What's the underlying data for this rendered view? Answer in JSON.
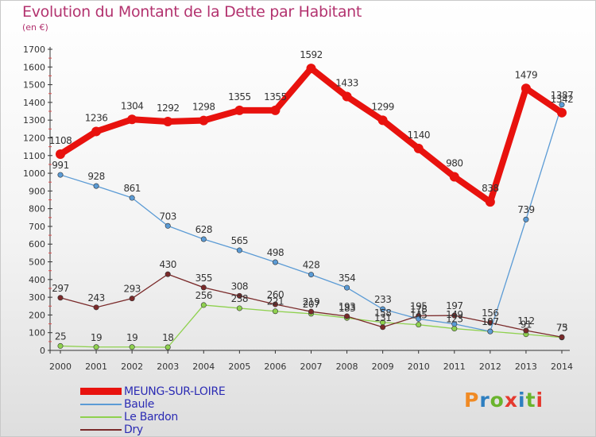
{
  "header": {
    "title": "Evolution du Montant de la Dette par Habitant",
    "unit": "(en €)"
  },
  "logo": {
    "text": "Proxiti",
    "colors": [
      "#f08a24",
      "#2e7fc0",
      "#6ab42d",
      "#e53a2f",
      "#2e7fc0",
      "#6ab42d",
      "#e53a2f"
    ]
  },
  "chart_data": {
    "type": "line",
    "title": "Evolution du Montant de la Dette par Habitant",
    "ylabel": "(en €)",
    "xlabel": "",
    "x": [
      "2000",
      "2001",
      "2002",
      "2003",
      "2004",
      "2005",
      "2006",
      "2007",
      "2008",
      "2009",
      "2010",
      "2011",
      "2012",
      "2013",
      "2014"
    ],
    "ylim": [
      0,
      1700
    ],
    "yticks": [
      0,
      100,
      200,
      300,
      400,
      500,
      600,
      700,
      800,
      900,
      1000,
      1100,
      1200,
      1300,
      1400,
      1500,
      1600,
      1700
    ],
    "grid": false,
    "legend_position": "bottom-left",
    "series": [
      {
        "name": "MEUNG-SUR-LOIRE",
        "color": "#e8120e",
        "label_color": "#2c2cb4",
        "values": [
          1108,
          1236,
          1304,
          1292,
          1298,
          1355,
          1355,
          1592,
          1433,
          1299,
          1140,
          980,
          838,
          1479,
          1342
        ],
        "labels": [
          "1108",
          "1236",
          "1304",
          "1292",
          "1298",
          "1355",
          "1355",
          "1592",
          "1433",
          "1299",
          "1140",
          "980",
          "838",
          "1479",
          "1342"
        ]
      },
      {
        "name": "Baule",
        "color": "#5b9bd5",
        "label_color": "#333333",
        "values": [
          991,
          928,
          861,
          703,
          628,
          565,
          498,
          428,
          354,
          233,
          178,
          149,
          107,
          739,
          1387
        ],
        "labels": [
          "991",
          "928",
          "861",
          "703",
          "628",
          "565",
          "498",
          "428",
          "354",
          "233",
          "178",
          "149",
          "107",
          "739",
          "1387"
        ]
      },
      {
        "name": "Le Bardon",
        "color": "#8fd14f",
        "label_color": "#333333",
        "values": [
          25,
          19,
          19,
          18,
          256,
          238,
          221,
          207,
          183,
          158,
          145,
          123,
          107,
          91,
          73
        ],
        "labels": [
          "25",
          "19",
          "19",
          "18",
          "256",
          "238",
          "221",
          "207",
          "183",
          "158",
          "145",
          "123",
          "107",
          "91",
          "73"
        ]
      },
      {
        "name": "Dry",
        "color": "#7a2a2a",
        "label_color": "#333333",
        "values": [
          297,
          243,
          293,
          430,
          355,
          308,
          260,
          219,
          193,
          131,
          195,
          197,
          156,
          112,
          75
        ],
        "labels": [
          "297",
          "243",
          "293",
          "430",
          "355",
          "308",
          "260",
          "219",
          "193",
          "131",
          "195",
          "197",
          "156",
          "112",
          "75"
        ]
      }
    ]
  }
}
